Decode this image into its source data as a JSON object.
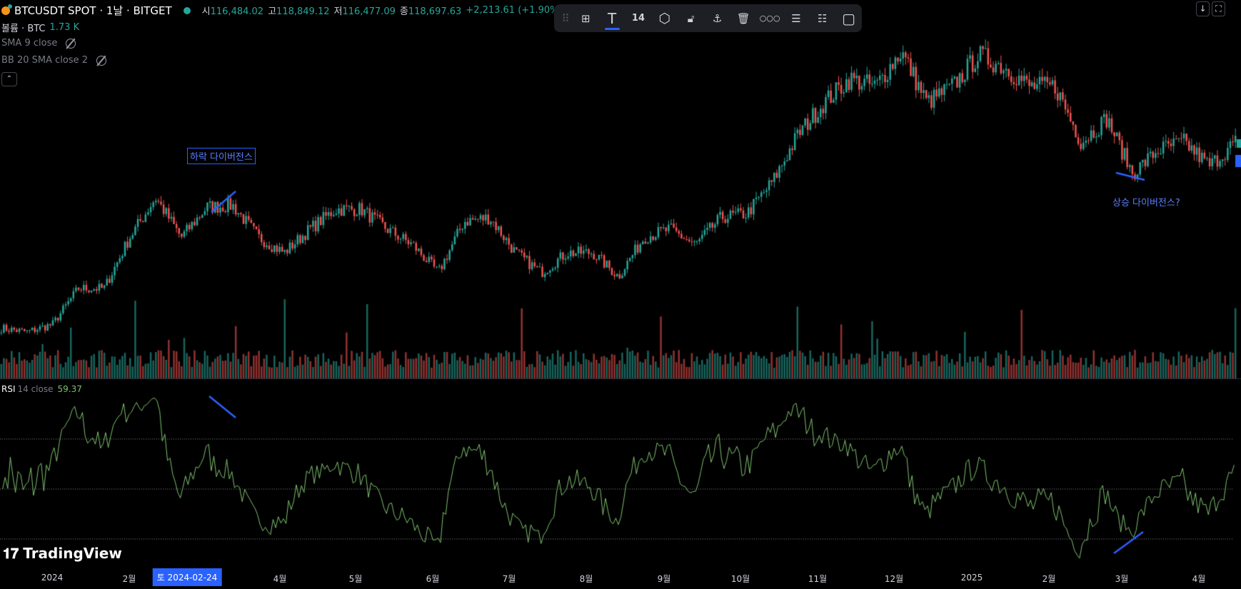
{
  "header": {
    "symbol": "BTCUSDT SPOT · 1날 · BITGET",
    "open_label": "시",
    "open": "116,484.02",
    "high_label": "고",
    "high": "118,849.12",
    "low_label": "저",
    "low": "116,477.09",
    "close_label": "종",
    "close": "118,697.63",
    "change": "+2,213.61 (+1.90%)"
  },
  "volume": {
    "label": "볼륨 · BTC",
    "value": "1.73 K"
  },
  "indicators": [
    {
      "label": "SMA 9 close"
    },
    {
      "label": "BB 20 SMA close 2"
    }
  ],
  "toolbar": {
    "font_size": "14"
  },
  "rsi": {
    "name": "RSI",
    "params": "14 close",
    "value": "59.37"
  },
  "annotations": {
    "bearish": "하락 다이버전스",
    "bullish": "상승 다이버전스?"
  },
  "axis": [
    "2024",
    "2월",
    "토 2024-02-24",
    "4월",
    "5월",
    "6월",
    "7월",
    "8월",
    "9월",
    "10월",
    "11월",
    "12월",
    "2025",
    "2월",
    "3월",
    "4월"
  ],
  "logo": "TradingView",
  "colors": {
    "up": "#26a69a",
    "down": "#ef5350",
    "rsi": "#7ec26e",
    "accent": "#2962ff"
  },
  "chart_data": {
    "type": "candlestick",
    "price_anchors": [
      40900,
      40000,
      41800,
      50100,
      50100,
      62000,
      71200,
      62000,
      69000,
      69400,
      62000,
      58400,
      63900,
      68500,
      68500,
      63900,
      60200,
      53800,
      65700,
      66600,
      58400,
      53800,
      58400,
      58400,
      52900,
      62000,
      63900,
      60200,
      66600,
      67500,
      74900,
      86000,
      93300,
      98800,
      97000,
      105200,
      93300,
      97000,
      104300,
      101600,
      97000,
      97000,
      84100,
      89600,
      76800,
      82300,
      84100,
      78600,
      84100
    ]
  }
}
